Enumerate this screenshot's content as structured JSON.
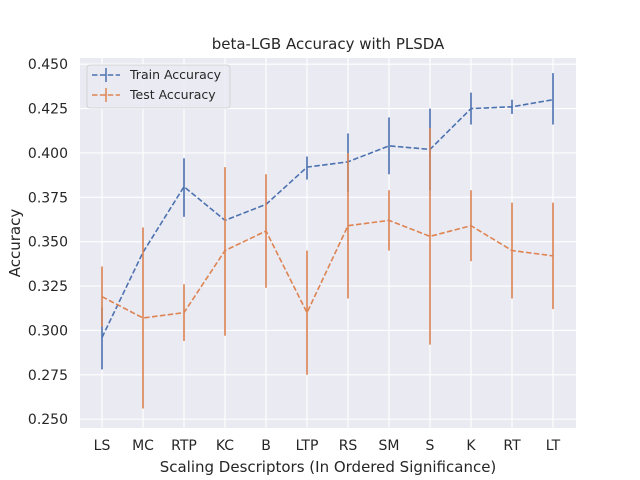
{
  "chart_data": {
    "type": "line",
    "title": "beta-LGB Accuracy with PLSDA",
    "xlabel": "Scaling Descriptors (In Ordered Significance)",
    "ylabel": "Accuracy",
    "categories": [
      "LS",
      "MC",
      "RTP",
      "KC",
      "B",
      "LTP",
      "RS",
      "SM",
      "S",
      "K",
      "RT",
      "LT"
    ],
    "ylim": [
      0.245,
      0.4535
    ],
    "yticks": [
      0.25,
      0.275,
      0.3,
      0.325,
      0.35,
      0.375,
      0.4,
      0.425,
      0.45
    ],
    "ytick_labels": [
      "0.250",
      "0.275",
      "0.300",
      "0.325",
      "0.350",
      "0.375",
      "0.400",
      "0.425",
      "0.450"
    ],
    "grid": true,
    "legend_position": "top-left",
    "series": [
      {
        "name": "Train Accuracy",
        "color": "#4c72b0",
        "values": [
          0.296,
          0.344,
          0.381,
          0.362,
          0.371,
          0.392,
          0.395,
          0.404,
          0.402,
          0.425,
          0.426,
          0.43
        ],
        "err_low": [
          0.278,
          null,
          0.364,
          null,
          null,
          0.385,
          0.378,
          0.388,
          0.379,
          0.416,
          0.422,
          0.416
        ],
        "err_high": [
          0.313,
          null,
          0.397,
          null,
          null,
          0.398,
          0.411,
          0.42,
          0.425,
          0.434,
          0.43,
          0.445
        ]
      },
      {
        "name": "Test Accuracy",
        "color": "#dd8452",
        "values": [
          0.319,
          0.307,
          0.31,
          0.345,
          0.356,
          0.31,
          0.359,
          0.362,
          0.353,
          0.359,
          0.345,
          0.342
        ],
        "err_low": [
          0.302,
          0.256,
          0.294,
          0.297,
          0.324,
          0.275,
          0.318,
          0.345,
          0.292,
          0.339,
          0.318,
          0.312
        ],
        "err_high": [
          0.336,
          0.358,
          0.326,
          0.392,
          0.388,
          0.345,
          0.4,
          0.379,
          0.414,
          0.379,
          0.372,
          0.372
        ]
      }
    ]
  }
}
